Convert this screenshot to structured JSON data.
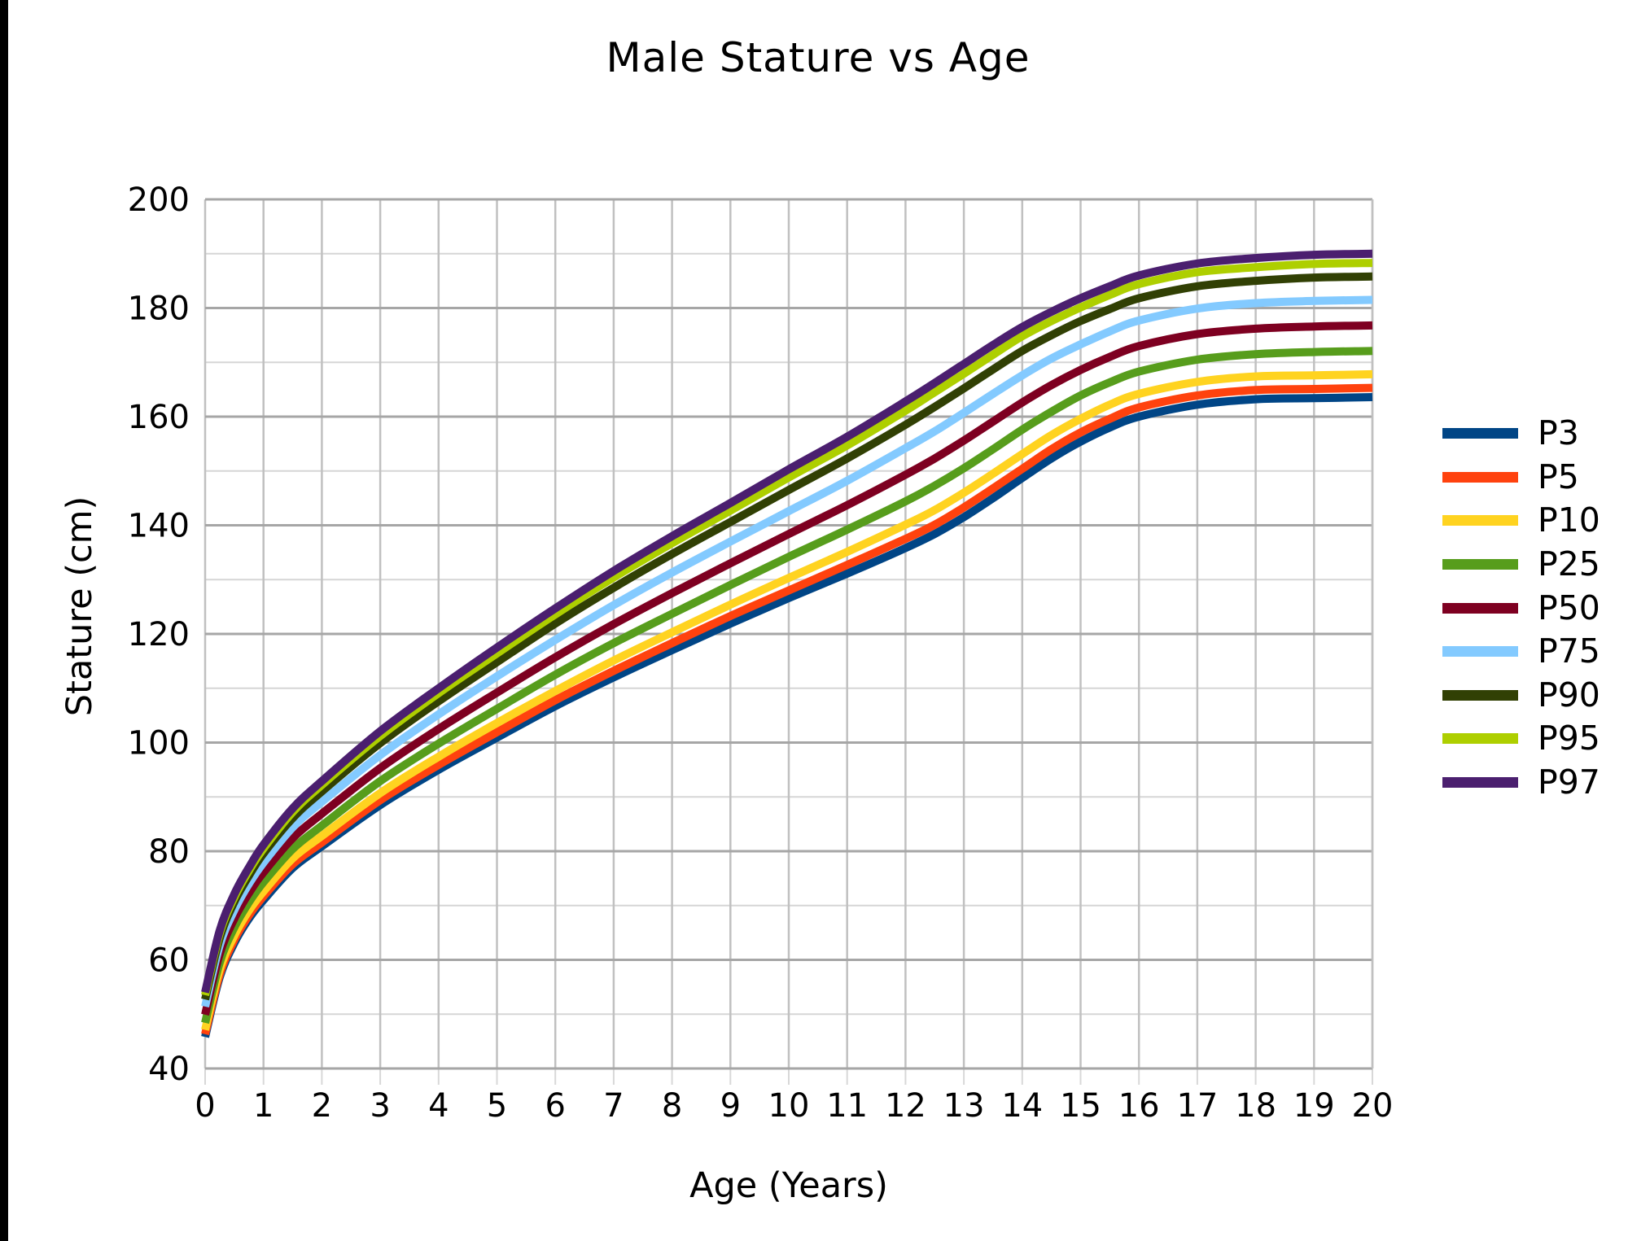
{
  "page": {
    "background": "#ffffff",
    "left_edge_bar_color": "#000000"
  },
  "chart_data": {
    "type": "line",
    "title": "Male Stature vs Age",
    "xlabel": "Age (Years)",
    "ylabel": "Stature (cm)",
    "xlim": [
      0,
      20
    ],
    "ylim": [
      40,
      200
    ],
    "grid": true,
    "legend_position": "right",
    "x_ticks": [
      0,
      1,
      2,
      3,
      4,
      5,
      6,
      7,
      8,
      9,
      10,
      11,
      12,
      13,
      14,
      15,
      16,
      17,
      18,
      19,
      20
    ],
    "y_ticks": [
      40,
      60,
      80,
      100,
      120,
      140,
      160,
      180,
      200
    ],
    "y_minor_ticks": [
      50,
      70,
      90,
      110,
      130,
      150,
      170,
      190
    ],
    "x": [
      0,
      0.25,
      0.5,
      0.75,
      1,
      1.5,
      2,
      3,
      4,
      5,
      6,
      7,
      8,
      9,
      10,
      11,
      12,
      12.5,
      13,
      13.5,
      14,
      14.5,
      15,
      15.5,
      16,
      17,
      18,
      19,
      20
    ],
    "series": [
      {
        "name": "P3",
        "color": "#004586",
        "values": [
          45.8,
          56.8,
          63.1,
          67.6,
          71.0,
          76.9,
          80.9,
          88.5,
          95.0,
          100.9,
          106.7,
          112.0,
          117.0,
          121.9,
          126.6,
          131.1,
          135.8,
          138.4,
          141.5,
          145.0,
          148.7,
          152.3,
          155.4,
          158.0,
          160.0,
          162.2,
          163.2,
          163.4,
          163.6
        ]
      },
      {
        "name": "P5",
        "color": "#ff420e",
        "values": [
          46.3,
          57.3,
          63.7,
          68.2,
          71.7,
          77.6,
          81.6,
          89.4,
          95.9,
          101.9,
          107.8,
          113.2,
          118.3,
          123.3,
          128.0,
          132.7,
          137.5,
          140.1,
          143.3,
          146.8,
          150.4,
          154.0,
          157.1,
          159.6,
          161.7,
          163.9,
          164.9,
          165.1,
          165.3
        ]
      },
      {
        "name": "P10",
        "color": "#ffd320",
        "values": [
          47.1,
          58.2,
          64.5,
          69.1,
          72.6,
          78.7,
          82.8,
          90.7,
          97.4,
          103.6,
          109.5,
          115.1,
          120.3,
          125.4,
          130.3,
          135.1,
          140.1,
          142.8,
          146.0,
          149.5,
          153.1,
          156.6,
          159.6,
          162.2,
          164.2,
          166.4,
          167.4,
          167.6,
          167.8
        ]
      },
      {
        "name": "P25",
        "color": "#579d1c",
        "values": [
          48.4,
          59.5,
          66.0,
          70.6,
          74.3,
          80.4,
          84.7,
          92.9,
          99.8,
          106.2,
          112.5,
          118.3,
          123.7,
          129.0,
          134.2,
          139.2,
          144.4,
          147.3,
          150.5,
          154.0,
          157.6,
          160.9,
          163.9,
          166.3,
          168.3,
          170.5,
          171.5,
          171.9,
          172.1
        ]
      },
      {
        "name": "P50",
        "color": "#7e0021",
        "values": [
          49.9,
          61.1,
          67.6,
          72.3,
          76.1,
          82.4,
          86.9,
          95.3,
          102.5,
          109.2,
          115.7,
          121.8,
          127.5,
          133.0,
          138.4,
          143.7,
          149.3,
          152.3,
          155.6,
          159.1,
          162.6,
          165.8,
          168.6,
          171.0,
          173.0,
          175.2,
          176.2,
          176.6,
          176.8
        ]
      },
      {
        "name": "P75",
        "color": "#83caff",
        "values": [
          51.4,
          62.7,
          69.2,
          74.0,
          77.9,
          84.4,
          89.1,
          97.7,
          105.2,
          112.2,
          118.9,
          125.3,
          131.3,
          137.0,
          142.6,
          148.2,
          154.2,
          157.3,
          160.7,
          164.2,
          167.6,
          170.7,
          173.3,
          175.7,
          177.7,
          179.9,
          180.9,
          181.3,
          181.5
        ]
      },
      {
        "name": "P90",
        "color": "#314004",
        "values": [
          52.7,
          64.0,
          70.7,
          75.5,
          79.6,
          86.1,
          91.0,
          99.9,
          107.6,
          114.8,
          121.9,
          128.5,
          134.7,
          140.6,
          146.5,
          152.3,
          158.5,
          161.8,
          165.2,
          168.7,
          172.1,
          175.0,
          177.6,
          179.8,
          181.8,
          184.0,
          185.0,
          185.6,
          185.8
        ]
      },
      {
        "name": "P95",
        "color": "#aecf00",
        "values": [
          53.5,
          64.9,
          71.5,
          76.4,
          80.5,
          87.2,
          92.2,
          101.2,
          109.1,
          116.4,
          123.6,
          130.4,
          136.7,
          142.7,
          148.8,
          154.7,
          161.1,
          164.5,
          167.9,
          171.4,
          174.8,
          177.6,
          180.1,
          182.4,
          184.4,
          186.6,
          187.5,
          188.1,
          188.3
        ]
      },
      {
        "name": "P97",
        "color": "#4b1f6f",
        "values": [
          54.0,
          65.4,
          72.1,
          77.0,
          81.2,
          87.9,
          92.9,
          102.1,
          110.0,
          117.5,
          124.7,
          131.6,
          138.0,
          144.1,
          150.3,
          156.3,
          162.8,
          166.2,
          169.7,
          173.2,
          176.5,
          179.3,
          181.8,
          184.0,
          186.0,
          188.2,
          189.2,
          189.8,
          190.0
        ]
      }
    ]
  },
  "style_colors": {
    "grid_major": "#a6a6a6",
    "grid_minor": "#d6d6d6",
    "grid_vertical": "#c0c0c0",
    "tick_stub": "#d8d8d8",
    "tick_text": "#000000"
  }
}
